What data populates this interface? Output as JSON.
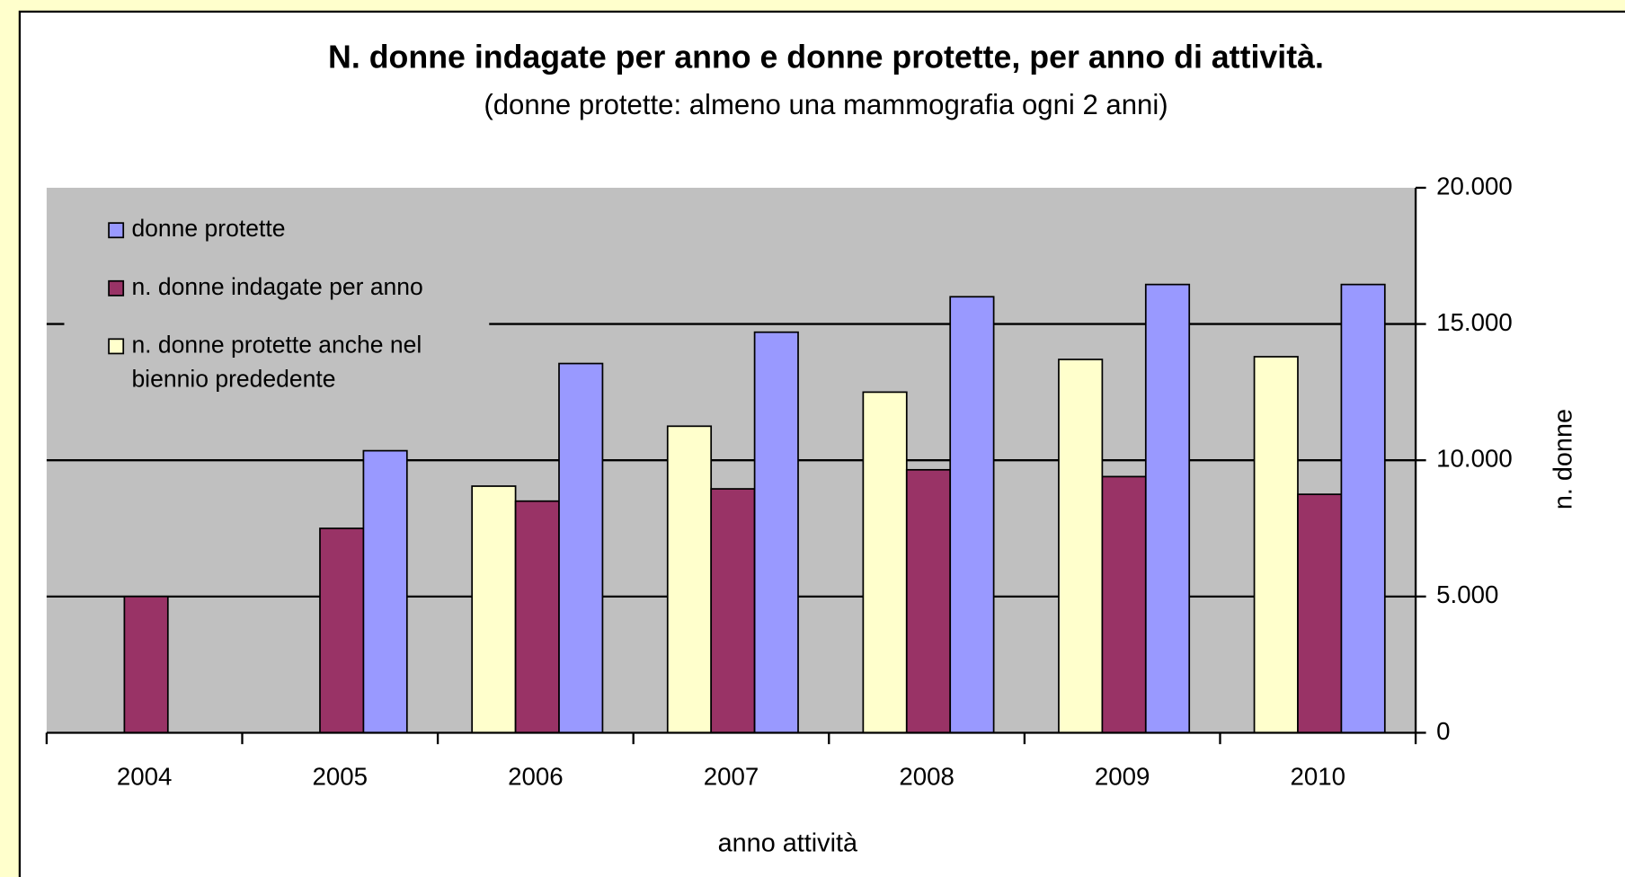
{
  "chart_data": {
    "type": "bar",
    "title": "N. donne indagate per anno e donne protette, per anno di attività.",
    "subtitle": "(donne protette: almeno una mammografia ogni 2 anni)",
    "x_label": "anno attività",
    "y_label": "n. donne",
    "categories": [
      "2004",
      "2005",
      "2006",
      "2007",
      "2008",
      "2009",
      "2010"
    ],
    "series": [
      {
        "name": "n. donne protette anche nel\nbiennio prededente",
        "color": "#ffffcc",
        "values": [
          null,
          null,
          9050,
          11250,
          12500,
          13700,
          13800
        ]
      },
      {
        "name": "n. donne indagate per anno",
        "color": "#993366",
        "values": [
          5000,
          7500,
          8500,
          8950,
          9650,
          9400,
          8750
        ]
      },
      {
        "name": "donne protette",
        "color": "#9999ff",
        "values": [
          null,
          10350,
          13550,
          14700,
          16000,
          16450,
          16450
        ]
      }
    ],
    "ylim": [
      0,
      20000
    ],
    "yticks": [
      0,
      {
        "value": 5000,
        "label": "5.000"
      },
      {
        "value": 10000,
        "label": "10.000"
      },
      {
        "value": 15000,
        "label": "15.000"
      },
      {
        "value": 20000,
        "label": "20.000"
      }
    ],
    "grid": true,
    "legend": "top-left",
    "y_axis_side": "right"
  }
}
